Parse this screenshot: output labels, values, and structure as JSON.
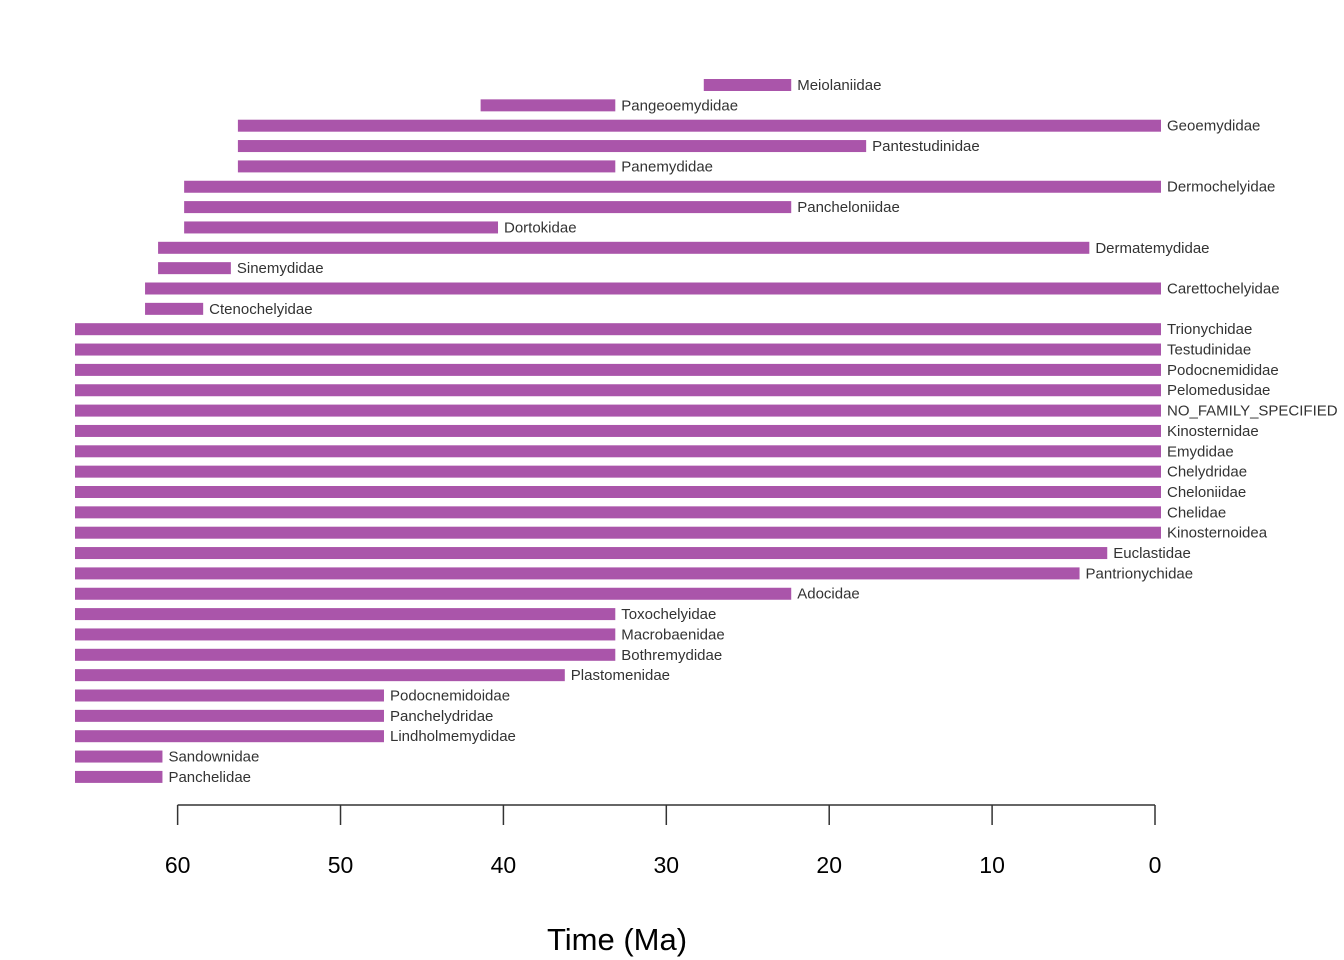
{
  "chart_data": {
    "type": "range_bar",
    "x_label": "Time (Ma)",
    "color": "#aa55aa",
    "xlim": [
      66.3,
      0
    ],
    "xticks": [
      60,
      50,
      40,
      30,
      20,
      10,
      0
    ],
    "categories": [
      "Meiolaniidae",
      "Pangeoemydidae",
      "Geoemydidae",
      "Pantestudinidae",
      "Panemydidae",
      "Dermochelyidae",
      "Pancheloniidae",
      "Dortokidae",
      "Dermatemydidae",
      "Sinemydidae",
      "Carettochelyidae",
      "Ctenochelyidae",
      "Trionychidae",
      "Testudinidae",
      "Podocnemididae",
      "Pelomedusidae",
      "NO_FAMILY_SPECIFIED",
      "Kinosternidae",
      "Emydidae",
      "Chelydridae",
      "Cheloniidae",
      "Chelidae",
      "Kinosternoidea",
      "Euclastidae",
      "Pantrionychidae",
      "Adocidae",
      "Toxochelyidae",
      "Macrobaenidae",
      "Bothremydidae",
      "Plastomenidae",
      "Podocnemidoidae",
      "Panchelydridae",
      "Lindholmemydidae",
      "Sandownidae",
      "Panchelidae"
    ],
    "start": [
      27.7,
      41.4,
      56.3,
      56.3,
      56.3,
      59.6,
      59.6,
      59.6,
      61.2,
      61.2,
      62.0,
      62.0,
      66.3,
      66.3,
      66.3,
      66.3,
      66.3,
      66.3,
      66.3,
      66.3,
      66.3,
      66.3,
      66.3,
      66.3,
      66.3,
      66.3,
      66.3,
      66.3,
      66.3,
      66.3,
      66.3,
      66.3,
      66.3,
      66.3,
      66.3
    ],
    "end": [
      22.7,
      33.5,
      0,
      18.1,
      33.5,
      0,
      22.7,
      40.7,
      4.4,
      57.1,
      0,
      58.8,
      0,
      0,
      0,
      0,
      0,
      0,
      0,
      0,
      0,
      0,
      0,
      3.3,
      5.0,
      22.7,
      33.5,
      33.5,
      33.5,
      36.6,
      47.7,
      47.7,
      47.7,
      61.3,
      61.3
    ]
  }
}
